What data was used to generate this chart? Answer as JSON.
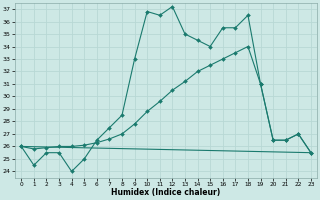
{
  "xlabel": "Humidex (Indice chaleur)",
  "background_color": "#cde8e5",
  "line_color": "#1a7a6e",
  "grid_color": "#b8d8d5",
  "xlim": [
    -0.5,
    23.5
  ],
  "ylim": [
    23.5,
    37.5
  ],
  "yticks": [
    24,
    25,
    26,
    27,
    28,
    29,
    30,
    31,
    32,
    33,
    34,
    35,
    36,
    37
  ],
  "xticks": [
    0,
    1,
    2,
    3,
    4,
    5,
    6,
    7,
    8,
    9,
    10,
    11,
    12,
    13,
    14,
    15,
    16,
    17,
    18,
    19,
    20,
    21,
    22,
    23
  ],
  "line1_x": [
    0,
    1,
    2,
    3,
    4,
    5,
    6,
    7,
    8,
    9,
    10,
    11,
    12,
    13,
    14,
    15,
    16,
    17,
    18,
    19,
    20,
    21,
    22,
    23
  ],
  "line1_y": [
    26.0,
    24.5,
    25.5,
    25.5,
    24.0,
    25.0,
    26.5,
    27.5,
    28.5,
    33.0,
    36.8,
    36.5,
    37.2,
    35.0,
    34.5,
    34.0,
    35.5,
    35.5,
    36.5,
    31.0,
    26.5,
    26.5,
    27.0,
    25.5
  ],
  "line2_x": [
    0,
    23
  ],
  "line2_y": [
    26.0,
    25.5
  ],
  "line3_x": [
    0,
    1,
    2,
    3,
    4,
    5,
    6,
    7,
    8,
    9,
    10,
    11,
    12,
    13,
    14,
    15,
    16,
    17,
    18,
    19,
    20,
    21,
    22,
    23
  ],
  "line3_y": [
    26.0,
    25.8,
    25.9,
    26.0,
    26.0,
    26.1,
    26.3,
    26.6,
    27.0,
    27.8,
    28.8,
    29.6,
    30.5,
    31.2,
    32.0,
    32.5,
    33.0,
    33.5,
    34.0,
    31.0,
    26.5,
    26.5,
    27.0,
    25.5
  ]
}
